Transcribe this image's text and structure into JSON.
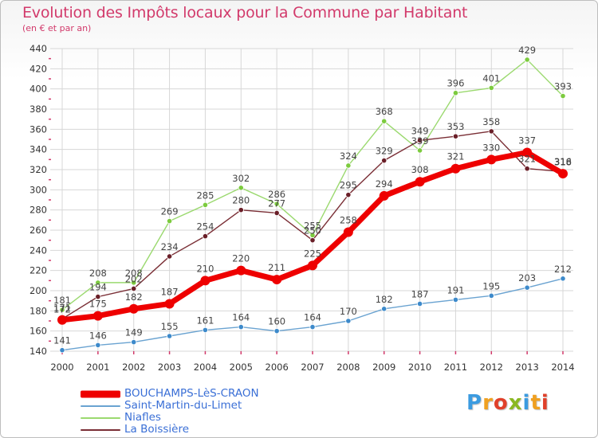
{
  "header": {
    "title": "Evolution des Impôts locaux pour la Commune par Habitant",
    "subtitle": "(en € et par an)"
  },
  "logo": {
    "letters": [
      "P",
      "r",
      "o",
      "x",
      "i",
      "t",
      "i"
    ],
    "colors": [
      "#3b9be0",
      "#f0a020",
      "#e0402a",
      "#8ab820",
      "#3b9be0",
      "#f0a020",
      "#e0402a"
    ]
  },
  "colors": {
    "title": "#d23a6b",
    "grid": "#d7d7d7",
    "tick_mark": "#d23a6b",
    "axis_text": "#333333",
    "label_text": "#444444"
  },
  "chart_data": {
    "type": "line",
    "title": "Evolution des Impôts locaux pour la Commune par Habitant",
    "subtitle": "(en € et par an)",
    "xlabel": "",
    "ylabel": "",
    "x": [
      "2000",
      "2001",
      "2002",
      "2003",
      "2004",
      "2005",
      "2006",
      "2007",
      "2008",
      "2009",
      "2010",
      "2011",
      "2012",
      "2013",
      "2014"
    ],
    "ylim": [
      140,
      440
    ],
    "yticks": [
      140,
      160,
      180,
      200,
      220,
      240,
      260,
      280,
      300,
      320,
      340,
      360,
      380,
      400,
      420,
      440
    ],
    "grid": true,
    "legend_position": "bottom-left",
    "series": [
      {
        "name": "Saint-Martin-du-Limet",
        "color": "#6aa3d1",
        "marker_color": "#3d8acb",
        "weight": "thin",
        "values": [
          141,
          146,
          149,
          155,
          161,
          164,
          160,
          164,
          170,
          182,
          187,
          191,
          195,
          203,
          212
        ]
      },
      {
        "name": "Niafles",
        "color": "#9bd96f",
        "marker_color": "#7ccb3e",
        "weight": "thin",
        "values": [
          181,
          208,
          208,
          269,
          285,
          302,
          286,
          255,
          324,
          368,
          339,
          396,
          401,
          429,
          393
        ]
      },
      {
        "name": "La Boissière",
        "color": "#7a2e35",
        "marker_color": "#6a1f28",
        "weight": "thin",
        "values": [
          172,
          194,
          202,
          234,
          254,
          280,
          277,
          250,
          295,
          329,
          349,
          353,
          358,
          321,
          318
        ]
      },
      {
        "name": "BOUCHAMPS-LèS-CRAON",
        "color": "#ee0000",
        "marker_color": "#ee0000",
        "weight": "thick",
        "values": [
          171,
          175,
          182,
          187,
          210,
          220,
          211,
          225,
          258,
          294,
          308,
          321,
          330,
          337,
          316
        ]
      }
    ],
    "legend": [
      {
        "name": "BOUCHAMPS-LèS-CRAON",
        "color": "#ee0000",
        "text_color": "#3a6fd6",
        "weight": "thick"
      },
      {
        "name": "Saint-Martin-du-Limet",
        "color": "#6aa3d1",
        "text_color": "#3a6fd6",
        "weight": "thin"
      },
      {
        "name": "Niafles",
        "color": "#9bd96f",
        "text_color": "#3a6fd6",
        "weight": "thin"
      },
      {
        "name": "La Boissière",
        "color": "#7a2e35",
        "text_color": "#3a6fd6",
        "weight": "thin"
      }
    ]
  }
}
